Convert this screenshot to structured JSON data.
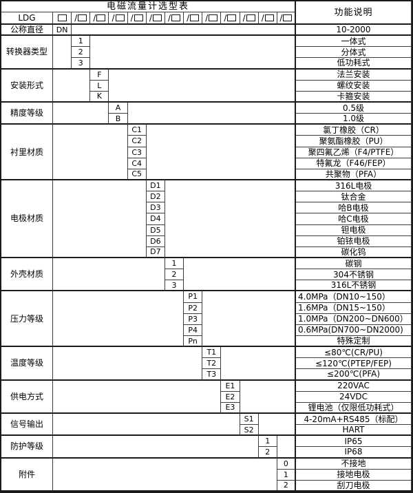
{
  "table": {
    "title": "电磁流量计选型表",
    "function_header": "功能说明",
    "model_prefix": "LDG",
    "slash": "/",
    "code_slot_count": 13,
    "dn_row": {
      "label": "公称直径",
      "code": "DN",
      "function": "10-2000"
    },
    "bands": [
      {
        "label": "转换器类型",
        "col": 2,
        "items": [
          {
            "code": "1",
            "function": "一体式"
          },
          {
            "code": "2",
            "function": "分体式"
          },
          {
            "code": "3",
            "function": "低功耗式"
          }
        ]
      },
      {
        "label": "安装形式",
        "col": 3,
        "items": [
          {
            "code": "F",
            "function": "法兰安装"
          },
          {
            "code": "L",
            "function": "螺纹安装"
          },
          {
            "code": "K",
            "function": "卡箍安装"
          }
        ]
      },
      {
        "label": "精度等级",
        "col": 4,
        "items": [
          {
            "code": "A",
            "function": "0.5级"
          },
          {
            "code": "B",
            "function": "1.0级"
          }
        ]
      },
      {
        "label": "衬里材质",
        "col": 5,
        "items": [
          {
            "code": "C1",
            "function": "氯丁橡胶（CR）"
          },
          {
            "code": "C2",
            "function": "聚氨酯橡胶（PU）"
          },
          {
            "code": "C3",
            "function": "聚四氟乙烯（F4/PTFE）"
          },
          {
            "code": "C4",
            "function": "特氟龙（F46/FEP）"
          },
          {
            "code": "C5",
            "function": "共聚物（PFA）"
          }
        ]
      },
      {
        "label": "电极材质",
        "col": 6,
        "items": [
          {
            "code": "D1",
            "function": "316L电极"
          },
          {
            "code": "D2",
            "function": "钛合金"
          },
          {
            "code": "D3",
            "function": "哈B电极"
          },
          {
            "code": "D4",
            "function": "哈C电极"
          },
          {
            "code": "D5",
            "function": "钽电极"
          },
          {
            "code": "D6",
            "function": "铂铱电极"
          },
          {
            "code": "D7",
            "function": "碳化钨"
          }
        ]
      },
      {
        "label": "外壳材质",
        "col": 7,
        "items": [
          {
            "code": "1",
            "function": "碳钢"
          },
          {
            "code": "2",
            "function": "304不锈钢"
          },
          {
            "code": "3",
            "function": "316L不锈钢"
          }
        ]
      },
      {
        "label": "压力等级",
        "col": 8,
        "items": [
          {
            "code": "P1",
            "function": "4.0MPa（DN10~150）",
            "align": "left"
          },
          {
            "code": "P2",
            "function": "1.6MPa（DN15~150）",
            "align": "left"
          },
          {
            "code": "P3",
            "function": "1.0MPa（DN200~DN600）",
            "align": "left"
          },
          {
            "code": "P4",
            "function": "0.6MPa(DN700~DN2000)",
            "align": "left"
          },
          {
            "code": "Pn",
            "function": "特殊定制"
          }
        ]
      },
      {
        "label": "温度等级",
        "col": 9,
        "items": [
          {
            "code": "T1",
            "function": "≤80℃(CR/PU)"
          },
          {
            "code": "T2",
            "function": "≤120℃(PTEP/FEP)"
          },
          {
            "code": "T3",
            "function": "≤200℃(PFA)"
          }
        ]
      },
      {
        "label": "供电方式",
        "col": 10,
        "items": [
          {
            "code": "E1",
            "function": "220VAC"
          },
          {
            "code": "E2",
            "function": "24VDC"
          },
          {
            "code": "E3",
            "function": "锂电池（仅限低功耗式）"
          }
        ]
      },
      {
        "label": "信号输出",
        "col": 11,
        "items": [
          {
            "code": "S1",
            "function": "4-20mA+RS485（标配）"
          },
          {
            "code": "S2",
            "function": "HART"
          }
        ]
      },
      {
        "label": "防护等级",
        "col": 12,
        "items": [
          {
            "code": "1",
            "function": "IP65"
          },
          {
            "code": "2",
            "function": "IP68"
          }
        ]
      },
      {
        "label": "附件",
        "col": 13,
        "items": [
          {
            "code": "0",
            "function": "不接地"
          },
          {
            "code": "1",
            "function": "接地电极"
          },
          {
            "code": "2",
            "function": "刮刀电极"
          }
        ]
      }
    ]
  }
}
